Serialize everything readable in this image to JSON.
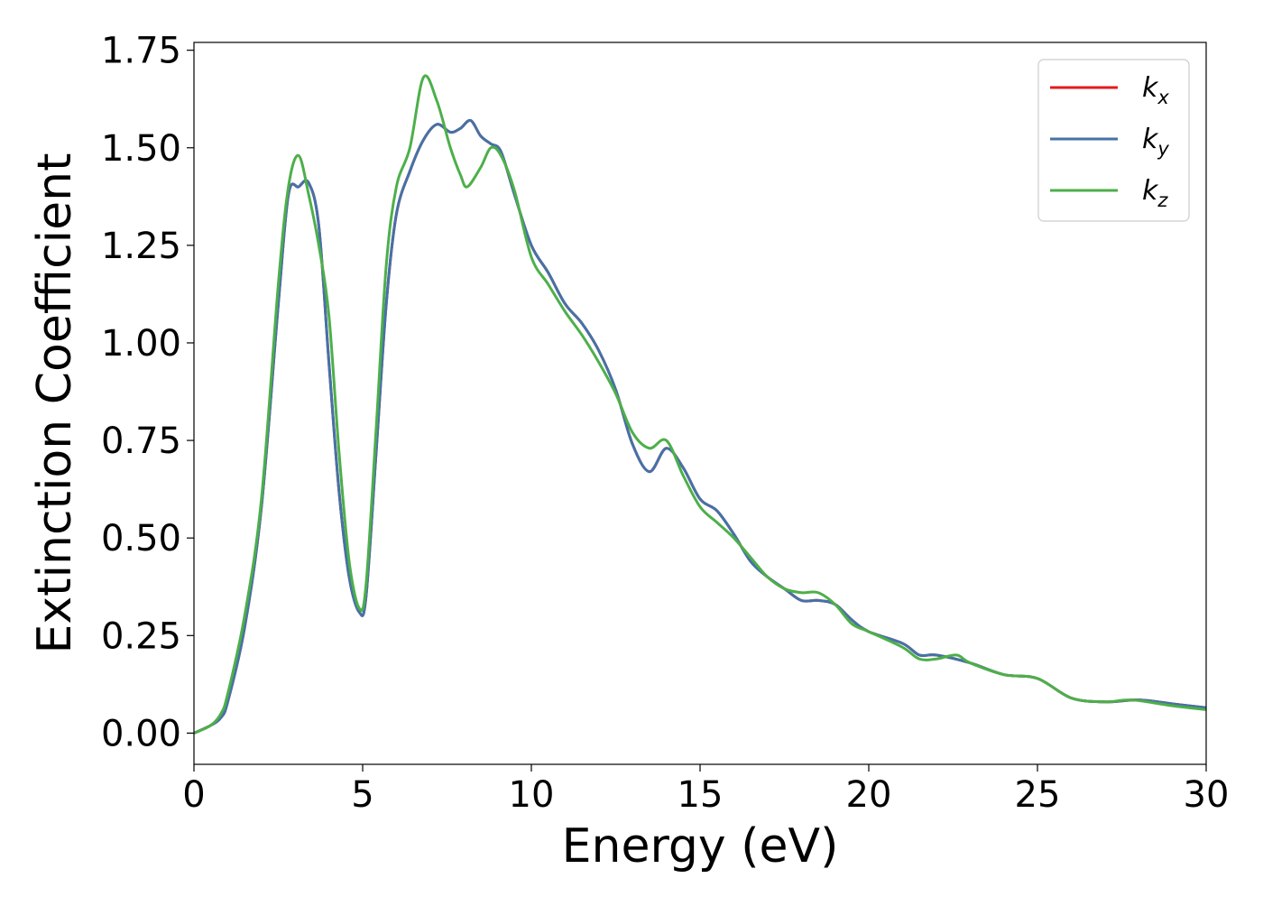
{
  "chart_data": {
    "type": "line",
    "title": "",
    "xlabel": "Energy (eV)",
    "ylabel": "Extinction Coefficient",
    "xlim": [
      0,
      30
    ],
    "ylim": [
      -0.08,
      1.77
    ],
    "xticks": [
      0,
      5,
      10,
      15,
      20,
      25,
      30
    ],
    "xtick_labels": [
      "0",
      "5",
      "10",
      "15",
      "20",
      "25",
      "30"
    ],
    "yticks": [
      0.0,
      0.25,
      0.5,
      0.75,
      1.0,
      1.25,
      1.5,
      1.75
    ],
    "ytick_labels": [
      "0.00",
      "0.25",
      "0.50",
      "0.75",
      "1.00",
      "1.25",
      "1.50",
      "1.75"
    ],
    "grid": false,
    "legend": {
      "position": "top-right"
    },
    "series": [
      {
        "name_base": "k",
        "name_sub": "x",
        "color": "#e41a1c",
        "x": [
          0,
          0.5,
          0.8,
          1.0,
          1.5,
          2.0,
          2.5,
          2.8,
          3.1,
          3.4,
          3.7,
          4.0,
          4.3,
          4.6,
          4.9,
          5.1,
          5.4,
          5.7,
          6.0,
          6.4,
          6.8,
          7.2,
          7.6,
          7.9,
          8.2,
          8.5,
          8.8,
          9.1,
          9.5,
          10.0,
          10.5,
          11.0,
          11.5,
          12.0,
          12.5,
          13.0,
          13.5,
          14.0,
          14.5,
          15.0,
          15.5,
          16.0,
          16.5,
          17.0,
          17.5,
          18.0,
          18.5,
          19.0,
          19.5,
          20.0,
          21.0,
          21.5,
          22.0,
          23.0,
          24.0,
          25.0,
          26.0,
          27.0,
          28.0,
          29.0,
          30.0
        ],
        "y": [
          0.0,
          0.02,
          0.04,
          0.08,
          0.27,
          0.58,
          1.1,
          1.38,
          1.4,
          1.41,
          1.3,
          0.95,
          0.62,
          0.4,
          0.31,
          0.35,
          0.72,
          1.1,
          1.33,
          1.44,
          1.52,
          1.56,
          1.54,
          1.55,
          1.57,
          1.53,
          1.51,
          1.49,
          1.38,
          1.25,
          1.18,
          1.1,
          1.05,
          0.98,
          0.88,
          0.74,
          0.67,
          0.73,
          0.68,
          0.6,
          0.57,
          0.51,
          0.44,
          0.4,
          0.37,
          0.34,
          0.34,
          0.33,
          0.29,
          0.26,
          0.23,
          0.2,
          0.2,
          0.18,
          0.15,
          0.14,
          0.09,
          0.08,
          0.085,
          0.075,
          0.065
        ]
      },
      {
        "name_base": "k",
        "name_sub": "y",
        "color": "#4472a8",
        "x": [
          0,
          0.5,
          0.8,
          1.0,
          1.5,
          2.0,
          2.5,
          2.8,
          3.1,
          3.4,
          3.7,
          4.0,
          4.3,
          4.6,
          4.9,
          5.1,
          5.4,
          5.7,
          6.0,
          6.4,
          6.8,
          7.2,
          7.6,
          7.9,
          8.2,
          8.5,
          8.8,
          9.1,
          9.5,
          10.0,
          10.5,
          11.0,
          11.5,
          12.0,
          12.5,
          13.0,
          13.5,
          14.0,
          14.5,
          15.0,
          15.5,
          16.0,
          16.5,
          17.0,
          17.5,
          18.0,
          18.5,
          19.0,
          19.5,
          20.0,
          21.0,
          21.5,
          22.0,
          23.0,
          24.0,
          25.0,
          26.0,
          27.0,
          28.0,
          29.0,
          30.0
        ],
        "y": [
          0.0,
          0.02,
          0.04,
          0.08,
          0.27,
          0.58,
          1.1,
          1.38,
          1.4,
          1.41,
          1.3,
          0.95,
          0.62,
          0.4,
          0.31,
          0.35,
          0.72,
          1.1,
          1.33,
          1.44,
          1.52,
          1.56,
          1.54,
          1.55,
          1.57,
          1.53,
          1.51,
          1.49,
          1.38,
          1.25,
          1.18,
          1.1,
          1.05,
          0.98,
          0.88,
          0.74,
          0.67,
          0.73,
          0.68,
          0.6,
          0.57,
          0.51,
          0.44,
          0.4,
          0.37,
          0.34,
          0.34,
          0.33,
          0.29,
          0.26,
          0.23,
          0.2,
          0.2,
          0.18,
          0.15,
          0.14,
          0.09,
          0.08,
          0.085,
          0.075,
          0.065
        ]
      },
      {
        "name_base": "k",
        "name_sub": "z",
        "color": "#4daf4a",
        "x": [
          0,
          0.5,
          0.8,
          1.0,
          1.5,
          2.0,
          2.5,
          2.8,
          3.1,
          3.4,
          3.7,
          4.0,
          4.3,
          4.6,
          4.9,
          5.1,
          5.4,
          5.7,
          6.0,
          6.4,
          6.8,
          7.2,
          7.6,
          7.9,
          8.1,
          8.5,
          8.8,
          9.1,
          9.5,
          10.0,
          10.5,
          11.0,
          11.5,
          12.0,
          12.5,
          13.0,
          13.5,
          14.0,
          14.5,
          15.0,
          15.5,
          16.0,
          16.5,
          17.0,
          17.5,
          18.0,
          18.5,
          19.0,
          19.5,
          20.0,
          21.0,
          21.5,
          22.0,
          22.6,
          23.0,
          24.0,
          25.0,
          26.0,
          27.0,
          27.8,
          29.0,
          30.0
        ],
        "y": [
          0.0,
          0.02,
          0.05,
          0.1,
          0.3,
          0.6,
          1.15,
          1.4,
          1.48,
          1.38,
          1.25,
          1.07,
          0.72,
          0.44,
          0.32,
          0.38,
          0.78,
          1.2,
          1.4,
          1.5,
          1.68,
          1.62,
          1.5,
          1.43,
          1.4,
          1.45,
          1.5,
          1.48,
          1.39,
          1.22,
          1.15,
          1.08,
          1.02,
          0.95,
          0.87,
          0.77,
          0.73,
          0.75,
          0.66,
          0.58,
          0.54,
          0.5,
          0.45,
          0.4,
          0.37,
          0.36,
          0.36,
          0.33,
          0.28,
          0.26,
          0.22,
          0.19,
          0.19,
          0.2,
          0.18,
          0.15,
          0.14,
          0.09,
          0.08,
          0.085,
          0.07,
          0.06
        ]
      }
    ]
  }
}
